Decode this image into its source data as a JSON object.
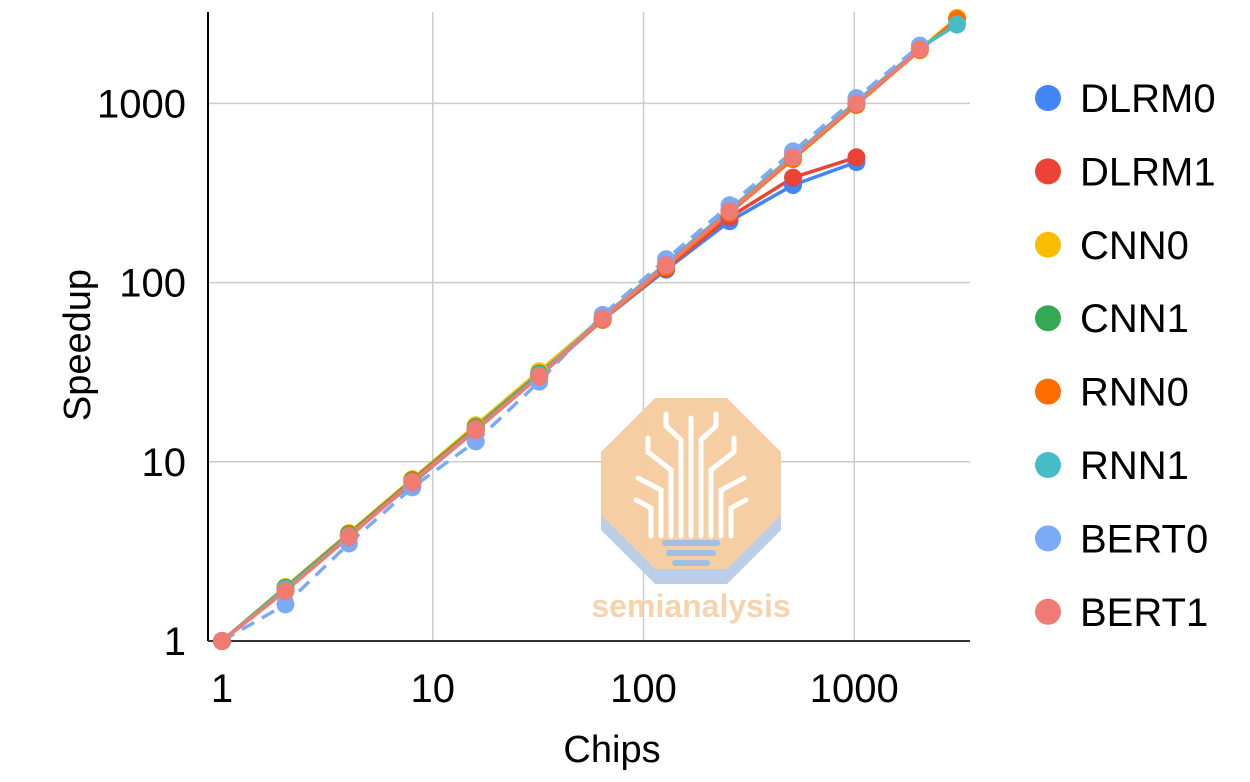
{
  "chart_data": {
    "type": "line",
    "title": "",
    "xlabel": "Chips",
    "ylabel": "Speedup",
    "x_scale": "log",
    "y_scale": "log",
    "xlim": [
      1,
      3072
    ],
    "ylim": [
      1,
      3072
    ],
    "x_ticks": [
      1,
      10,
      100,
      1000
    ],
    "x_tick_labels": [
      "1",
      "10",
      "100",
      "1000"
    ],
    "y_ticks": [
      1,
      10,
      100,
      1000
    ],
    "y_tick_labels": [
      "1",
      "10",
      "100",
      "1000"
    ],
    "grid": true,
    "legend_position": "right",
    "watermark": "semianalysis",
    "series": [
      {
        "name": "DLRM0",
        "color": "#4285F4",
        "dashed": false,
        "x": [
          1,
          2,
          4,
          8,
          16,
          32,
          64,
          128,
          256,
          512,
          1024
        ],
        "y": [
          1,
          1.95,
          3.85,
          7.6,
          15,
          30,
          62,
          118,
          220,
          350,
          470
        ]
      },
      {
        "name": "DLRM1",
        "color": "#EA4335",
        "dashed": false,
        "x": [
          1,
          2,
          4,
          8,
          16,
          32,
          64,
          128,
          256,
          512,
          1024
        ],
        "y": [
          1,
          1.95,
          3.9,
          7.7,
          15.2,
          30.5,
          63,
          120,
          232,
          385,
          500
        ]
      },
      {
        "name": "CNN0",
        "color": "#FBBC04",
        "dashed": false,
        "x": [
          1,
          2,
          4,
          8,
          16,
          32,
          64,
          128,
          256,
          512,
          1024,
          2048,
          3072
        ],
        "y": [
          1,
          2,
          4,
          8,
          16,
          32,
          64,
          127,
          252,
          500,
          1000,
          2000,
          3000
        ]
      },
      {
        "name": "CNN1",
        "color": "#34A853",
        "dashed": false,
        "x": [
          1,
          2,
          4,
          8,
          16,
          32,
          64,
          128,
          256,
          512,
          1024
        ],
        "y": [
          1,
          1.98,
          3.95,
          7.9,
          15.6,
          31,
          62,
          124,
          246,
          490,
          980
        ]
      },
      {
        "name": "RNN0",
        "color": "#FF6D01",
        "dashed": false,
        "x": [
          1,
          2,
          4,
          8,
          16,
          32,
          64,
          128,
          256,
          512,
          1024,
          2048,
          3072
        ],
        "y": [
          1,
          1.95,
          3.9,
          7.8,
          15.4,
          30.5,
          62,
          122,
          245,
          490,
          985,
          1980,
          2950
        ]
      },
      {
        "name": "RNN1",
        "color": "#46BDC6",
        "dashed": false,
        "x": [
          1,
          2,
          4,
          8,
          16,
          32,
          64,
          128,
          256,
          512,
          1024,
          2048,
          3072
        ],
        "y": [
          1,
          1.95,
          3.85,
          7.7,
          15.2,
          30.5,
          64,
          128,
          255,
          510,
          1020,
          2040,
          2750
        ]
      },
      {
        "name": "BERT0",
        "color": "#7BAAF7",
        "dashed": true,
        "x": [
          1,
          2,
          4,
          8,
          16,
          32,
          64,
          128,
          256,
          512,
          1024,
          2048
        ],
        "y": [
          1,
          1.6,
          3.5,
          7.2,
          13,
          28,
          66,
          135,
          270,
          540,
          1070,
          2100
        ]
      },
      {
        "name": "BERT1",
        "color": "#F07B72",
        "dashed": false,
        "x": [
          1,
          2,
          4,
          8,
          16,
          32,
          64,
          128,
          256,
          512,
          1024,
          2048
        ],
        "y": [
          1,
          1.9,
          3.8,
          7.7,
          15,
          30,
          63,
          125,
          250,
          500,
          1000,
          2000
        ]
      }
    ]
  }
}
